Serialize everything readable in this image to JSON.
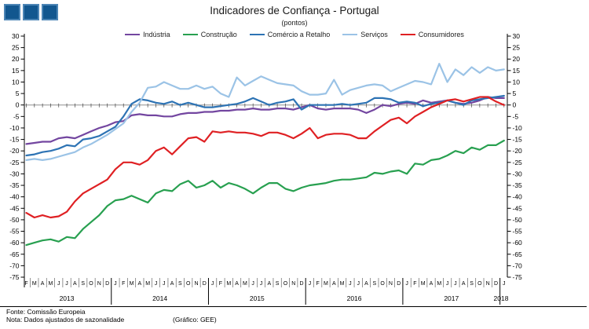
{
  "header": {
    "title": "Indicadores de Confiança - Portugal",
    "subtitle": "(pontos)",
    "logo": {
      "fill": "#12578F",
      "border": "#4C85B5",
      "count": 3
    }
  },
  "footer": {
    "source": "Fonte: Comissão Europeia",
    "note": "Nota: Dados ajustados de sazonalidade",
    "credit": "(Gráfico: GEE)"
  },
  "chart_data": {
    "type": "line",
    "title": "Indicadores de Confiança - Portugal",
    "subtitle": "(pontos)",
    "legend_position": "top",
    "grid": "zero-line-only",
    "ylim": [
      -75,
      30
    ],
    "ytick_step": 5,
    "zero_line_color": "#909090",
    "x_months": [
      "F",
      "M",
      "A",
      "M",
      "J",
      "J",
      "A",
      "S",
      "O",
      "N",
      "D",
      "J",
      "F",
      "M",
      "A",
      "M",
      "J",
      "J",
      "A",
      "S",
      "O",
      "N",
      "D",
      "J",
      "F",
      "M",
      "A",
      "M",
      "J",
      "J",
      "A",
      "S",
      "O",
      "N",
      "D",
      "J",
      "F",
      "M",
      "A",
      "M",
      "J",
      "J",
      "A",
      "S",
      "O",
      "N",
      "D",
      "J",
      "F",
      "M",
      "A",
      "M",
      "J",
      "J",
      "A",
      "S",
      "O",
      "N",
      "D",
      "J"
    ],
    "years": [
      {
        "label": "2013",
        "months": 11
      },
      {
        "label": "2014",
        "months": 12
      },
      {
        "label": "2015",
        "months": 12
      },
      {
        "label": "2016",
        "months": 12
      },
      {
        "label": "2017",
        "months": 12
      },
      {
        "label": "2018",
        "months": 1
      }
    ],
    "series": [
      {
        "name": "Indústria",
        "color": "#7346A0",
        "values": [
          -17,
          -16.5,
          -16,
          -16,
          -14.5,
          -14,
          -14.5,
          -13,
          -11.5,
          -10,
          -9,
          -7.5,
          -7,
          -4.5,
          -4,
          -4.5,
          -4.5,
          -5,
          -5,
          -4,
          -3.5,
          -3.5,
          -3,
          -3,
          -2.5,
          -2.5,
          -2,
          -2,
          -1.5,
          -2,
          -2,
          -1.5,
          -1.5,
          -2,
          -1,
          0,
          -1.5,
          -2,
          -1.5,
          -1.5,
          -1.5,
          -2,
          -3.5,
          -2,
          0,
          -0.5,
          0.5,
          1,
          0.5,
          2,
          1,
          1.5,
          2,
          1,
          0.5,
          1,
          2,
          3.5,
          3,
          3
        ]
      },
      {
        "name": "Construção",
        "color": "#28A050",
        "values": [
          -61,
          -60,
          -59,
          -58.5,
          -59.5,
          -57.5,
          -58,
          -54,
          -51,
          -48,
          -44,
          -41.5,
          -41,
          -39.5,
          -41,
          -42.5,
          -38.5,
          -37,
          -37.5,
          -34.5,
          -33,
          -36,
          -35,
          -33,
          -36,
          -34,
          -35,
          -36.5,
          -38.5,
          -36,
          -34,
          -34,
          -36.5,
          -37.5,
          -36,
          -35,
          -34.5,
          -34,
          -33,
          -32.5,
          -32.5,
          -32,
          -31.5,
          -29.5,
          -30,
          -29,
          -28.5,
          -30,
          -25.5,
          -26,
          -24,
          -23.5,
          -22,
          -20,
          -21,
          -18.5,
          -19.5,
          -17.5,
          -17.5,
          -15.5
        ]
      },
      {
        "name": "Comércio a Retalho",
        "color": "#2D73B4",
        "values": [
          -22,
          -21.5,
          -20.5,
          -20,
          -19,
          -17.5,
          -18,
          -15,
          -14.5,
          -13.5,
          -11.5,
          -9.5,
          -5,
          0.5,
          2.5,
          2,
          1,
          0.5,
          1.5,
          0,
          1,
          0,
          -1,
          -1,
          -0.5,
          0,
          0.5,
          1.5,
          3,
          1.5,
          0,
          1,
          1.5,
          2.5,
          -2,
          0,
          0,
          0,
          0,
          0.5,
          0,
          0.5,
          1,
          3,
          3,
          2.5,
          1,
          1.5,
          1,
          -0.5,
          0.5,
          1,
          2,
          1,
          0,
          2,
          2.5,
          3,
          3.5,
          4
        ]
      },
      {
        "name": "Serviços",
        "color": "#9BC3E6",
        "values": [
          -24,
          -23.5,
          -24,
          -23.5,
          -22.5,
          -21.5,
          -20.5,
          -18.5,
          -17,
          -15,
          -13,
          -10.5,
          -8,
          -3,
          1,
          7.5,
          8,
          10,
          8.5,
          7,
          7,
          8.5,
          7,
          8,
          5,
          3.5,
          12,
          8.5,
          10.5,
          12.5,
          11,
          9.5,
          9,
          8.5,
          6,
          4.5,
          4.5,
          5,
          11,
          4.5,
          6.5,
          7.5,
          8.5,
          9,
          8.5,
          6,
          7.5,
          9,
          10.5,
          10,
          9,
          18,
          10,
          15.5,
          13,
          16.5,
          14,
          16.5,
          15,
          15.5
        ]
      },
      {
        "name": "Consumidores",
        "color": "#DF2023",
        "values": [
          -47,
          -49,
          -48,
          -49,
          -48.5,
          -46.5,
          -42,
          -38.5,
          -36.5,
          -34.5,
          -32.5,
          -28,
          -25,
          -25,
          -26,
          -24,
          -20,
          -18.5,
          -21.5,
          -18,
          -14.5,
          -14,
          -16,
          -11.5,
          -12,
          -11.5,
          -12,
          -12,
          -12.5,
          -13.5,
          -12,
          -12,
          -13,
          -14.5,
          -12.5,
          -10,
          -14.5,
          -13,
          -12.5,
          -12.5,
          -13,
          -14.5,
          -14.5,
          -11.5,
          -9,
          -6.5,
          -5.5,
          -8,
          -5,
          -3,
          -1,
          0.5,
          2,
          2.5,
          1.5,
          2.5,
          3.5,
          3.5,
          1.5,
          0
        ]
      }
    ]
  }
}
